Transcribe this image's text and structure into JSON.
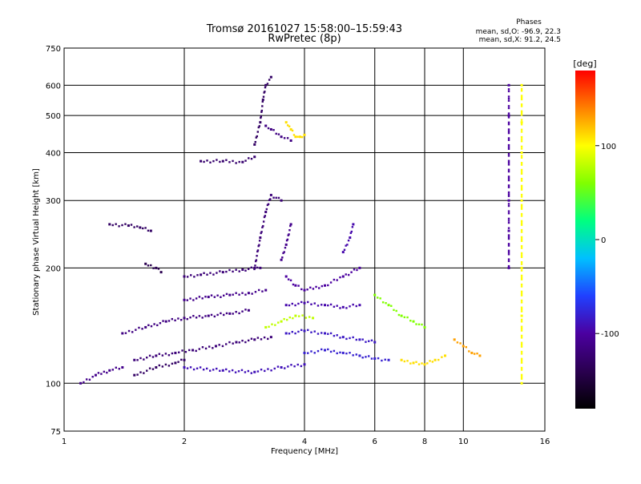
{
  "chart_data": {
    "type": "scatter",
    "title": "Tromsø 20161027 15:58:00–15:59:43",
    "subtitle": "RwPretec (8p)",
    "xlabel": "Frequency [MHz]",
    "ylabel": "Stationary phase Virtual Height [km]",
    "x_scale": "log",
    "y_scale": "log",
    "xlim": [
      1,
      16
    ],
    "ylim": [
      75,
      750
    ],
    "x_ticks": [
      1,
      2,
      4,
      6,
      8,
      10,
      16
    ],
    "y_ticks": [
      75,
      100,
      200,
      300,
      400,
      500,
      600,
      750
    ],
    "grid": true,
    "phases_box": {
      "title": "Phases",
      "line_o": "mean, sd,O:  -96.9,  22.3",
      "line_x": "mean, sd,X:   91.2,  24.5"
    },
    "colorbar": {
      "label": "[deg]",
      "range": [
        -180,
        180
      ],
      "ticks": [
        100,
        0,
        -100
      ],
      "colormap": "rainbow",
      "colors": [
        "#000000",
        "#2a0050",
        "#4b00a0",
        "#2040ff",
        "#00c0ff",
        "#00ff80",
        "#80ff00",
        "#ffff00",
        "#ff8000",
        "#ff0000"
      ]
    },
    "series": [
      {
        "traces": [
          {
            "pts": [
              [
                1.1,
                100
              ],
              [
                1.2,
                105
              ],
              [
                1.3,
                108
              ],
              [
                1.4,
                110
              ]
            ],
            "phase": -110
          },
          {
            "pts": [
              [
                1.3,
                260
              ],
              [
                1.45,
                258
              ],
              [
                1.55,
                255
              ],
              [
                1.65,
                250
              ]
            ],
            "phase": -130
          },
          {
            "pts": [
              [
                1.6,
                205
              ],
              [
                1.7,
                200
              ],
              [
                1.75,
                195
              ]
            ],
            "phase": -140
          },
          {
            "pts": [
              [
                1.5,
                115
              ],
              [
                1.7,
                118
              ],
              [
                1.9,
                120
              ],
              [
                2.1,
                122
              ],
              [
                2.4,
                125
              ],
              [
                2.7,
                128
              ],
              [
                3.0,
                130
              ],
              [
                3.3,
                132
              ]
            ],
            "phase": -120
          },
          {
            "pts": [
              [
                1.5,
                105
              ],
              [
                1.7,
                110
              ],
              [
                1.9,
                113
              ],
              [
                2.0,
                115
              ]
            ],
            "phase": -130
          },
          {
            "pts": [
              [
                1.4,
                135
              ],
              [
                1.6,
                140
              ],
              [
                1.8,
                145
              ],
              [
                2.0,
                148
              ],
              [
                2.3,
                150
              ],
              [
                2.6,
                152
              ],
              [
                2.9,
                155
              ]
            ],
            "phase": -115
          },
          {
            "pts": [
              [
                2.0,
                165
              ],
              [
                2.3,
                168
              ],
              [
                2.6,
                170
              ],
              [
                2.9,
                172
              ],
              [
                3.2,
                175
              ]
            ],
            "phase": -110
          },
          {
            "pts": [
              [
                2.0,
                190
              ],
              [
                2.2,
                192
              ],
              [
                2.5,
                195
              ],
              [
                2.8,
                198
              ],
              [
                3.1,
                200
              ]
            ],
            "phase": -120
          },
          {
            "pts": [
              [
                2.0,
                110
              ],
              [
                2.5,
                108
              ],
              [
                3.0,
                107
              ],
              [
                3.5,
                110
              ],
              [
                4.0,
                112
              ]
            ],
            "phase": -90
          },
          {
            "pts": [
              [
                2.2,
                380
              ],
              [
                2.5,
                380
              ],
              [
                2.8,
                378
              ],
              [
                3.0,
                390
              ]
            ],
            "phase": -125
          },
          {
            "pts": [
              [
                3.0,
                420
              ],
              [
                3.1,
                480
              ],
              [
                3.15,
                550
              ],
              [
                3.2,
                600
              ],
              [
                3.3,
                630
              ]
            ],
            "phase": -130
          },
          {
            "pts": [
              [
                3.2,
                470
              ],
              [
                3.3,
                460
              ],
              [
                3.5,
                440
              ],
              [
                3.7,
                430
              ]
            ],
            "phase": -115
          },
          {
            "pts": [
              [
                3.6,
                480
              ],
              [
                3.7,
                460
              ],
              [
                3.8,
                440
              ],
              [
                3.9,
                440
              ],
              [
                4.0,
                445
              ]
            ],
            "phase": 110
          },
          {
            "pts": [
              [
                3.0,
                200
              ],
              [
                3.1,
                240
              ],
              [
                3.2,
                280
              ],
              [
                3.3,
                310
              ],
              [
                3.5,
                300
              ]
            ],
            "phase": -120
          },
          {
            "pts": [
              [
                3.5,
                210
              ],
              [
                3.6,
                230
              ],
              [
                3.7,
                260
              ]
            ],
            "phase": -110
          },
          {
            "pts": [
              [
                3.2,
                140
              ],
              [
                3.5,
                145
              ],
              [
                3.8,
                150
              ],
              [
                4.2,
                148
              ]
            ],
            "phase": 80
          },
          {
            "pts": [
              [
                3.6,
                190
              ],
              [
                3.8,
                180
              ],
              [
                4.0,
                175
              ],
              [
                4.5,
                180
              ],
              [
                5.0,
                190
              ],
              [
                5.5,
                200
              ]
            ],
            "phase": -100
          },
          {
            "pts": [
              [
                3.6,
                160
              ],
              [
                4.0,
                162
              ],
              [
                4.5,
                160
              ],
              [
                5.0,
                158
              ],
              [
                5.5,
                160
              ]
            ],
            "phase": -95
          },
          {
            "pts": [
              [
                3.6,
                135
              ],
              [
                4.0,
                137
              ],
              [
                4.5,
                135
              ],
              [
                5.0,
                132
              ],
              [
                5.5,
                130
              ],
              [
                6.0,
                128
              ]
            ],
            "phase": -85
          },
          {
            "pts": [
              [
                4.0,
                120
              ],
              [
                4.5,
                122
              ],
              [
                5.0,
                120
              ],
              [
                5.5,
                118
              ],
              [
                6.0,
                116
              ],
              [
                6.5,
                115
              ]
            ],
            "phase": -80
          },
          {
            "pts": [
              [
                5.0,
                220
              ],
              [
                5.2,
                240
              ],
              [
                5.3,
                260
              ]
            ],
            "phase": -95
          },
          {
            "pts": [
              [
                6.0,
                170
              ],
              [
                6.5,
                160
              ],
              [
                7.0,
                150
              ],
              [
                7.5,
                145
              ],
              [
                8.0,
                140
              ]
            ],
            "phase": 60
          },
          {
            "pts": [
              [
                7.0,
                115
              ],
              [
                7.5,
                113
              ],
              [
                8.0,
                112
              ],
              [
                8.5,
                115
              ],
              [
                9.0,
                118
              ]
            ],
            "phase": 110
          },
          {
            "pts": [
              [
                9.5,
                130
              ],
              [
                10.0,
                125
              ],
              [
                10.5,
                120
              ],
              [
                11.0,
                118
              ]
            ],
            "phase": 130
          },
          {
            "pts": [
              [
                13.0,
                600
              ],
              [
                13.0,
                500
              ],
              [
                13.0,
                300
              ],
              [
                13.0,
                250
              ],
              [
                13.0,
                200
              ]
            ],
            "phase": -100
          },
          {
            "pts": [
              [
                14.0,
                600
              ],
              [
                14.0,
                480
              ],
              [
                14.0,
                400
              ],
              [
                14.0,
                300
              ],
              [
                14.0,
                200
              ],
              [
                14.0,
                150
              ],
              [
                14.0,
                100
              ]
            ],
            "phase": 100
          }
        ]
      }
    ]
  }
}
